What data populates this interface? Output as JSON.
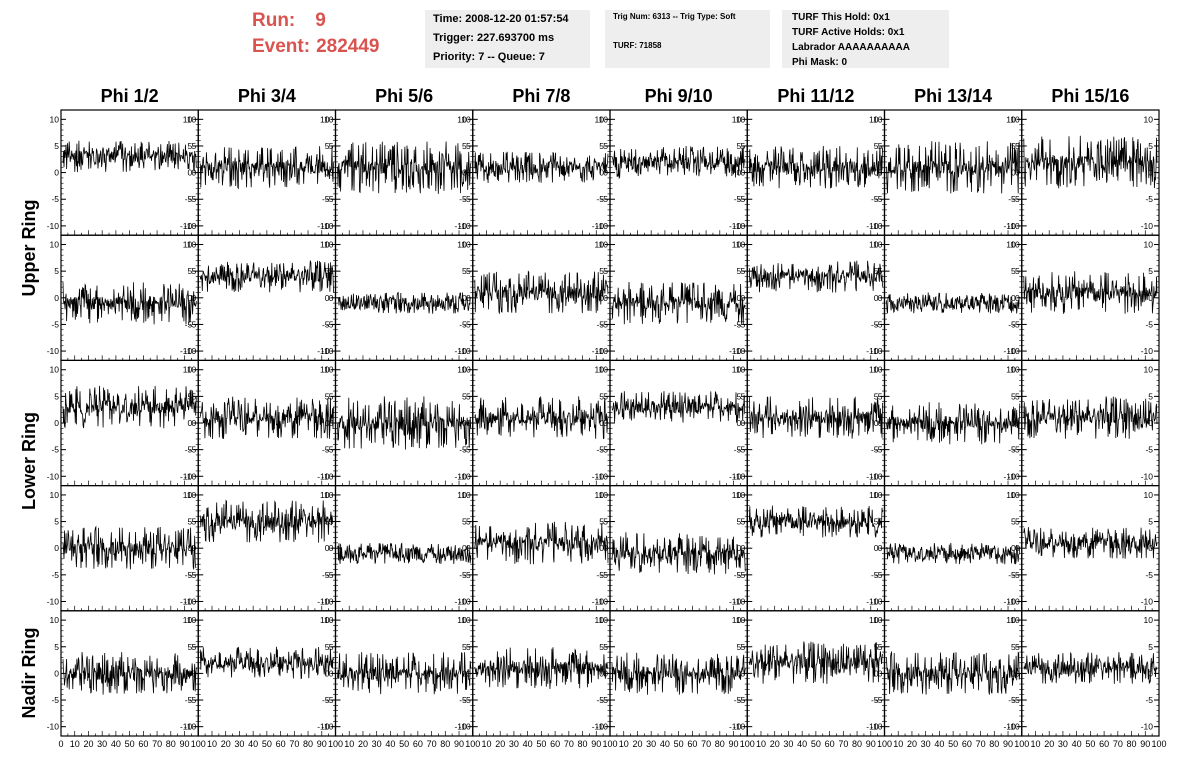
{
  "header": {
    "run_label": "Run:",
    "run_value": "9",
    "event_label": "Event:",
    "event_value": "282449",
    "info_box_1": {
      "time": "Time: 2008-12-20 01:57:54",
      "trigger": "Trigger: 227.693700 ms",
      "priority": "Priority: 7 -- Queue: 7"
    },
    "info_box_2": {
      "trig": "Trig Num: 6313 -- Trig Type: Soft",
      "turf": "TURF: 71858"
    },
    "info_box_3": {
      "this_hold": "TURF This Hold: 0x1",
      "active_holds": "TURF Active Holds: 0x1",
      "labrador": "Labrador AAAAAAAAAA",
      "phi_mask": "Phi Mask: 0"
    }
  },
  "columns": [
    "Phi 1/2",
    "Phi 3/4",
    "Phi 5/6",
    "Phi 7/8",
    "Phi 9/10",
    "Phi 11/12",
    "Phi 13/14",
    "Phi 15/16"
  ],
  "rings": [
    "Upper Ring",
    "Lower Ring",
    "Nadir Ring"
  ],
  "colors": {
    "accent": "#d9534f",
    "box_bg": "#eeeeee",
    "trace": "#000000"
  },
  "chart_data": {
    "type": "line",
    "grid": "8 columns x 5 rows of waveform panels",
    "ylim": [
      -11,
      11
    ],
    "y_ticks": [
      10,
      5,
      0,
      -5,
      -10
    ],
    "xlim": [
      0,
      100
    ],
    "x_tick_labels_first": [
      "0",
      "10",
      "20",
      "30",
      "40",
      "50",
      "60",
      "70",
      "80",
      "90",
      "100"
    ],
    "x_tick_labels": [
      "10",
      "20",
      "30",
      "40",
      "50",
      "60",
      "70",
      "80",
      "90",
      "100"
    ],
    "panel_baselines": [
      [
        3,
        1,
        1,
        1,
        2,
        1,
        1,
        2
      ],
      [
        -1,
        4,
        -1,
        1,
        -1,
        4,
        -1,
        1
      ],
      [
        3,
        1,
        0,
        1,
        3,
        1,
        0,
        1
      ],
      [
        0,
        5,
        -1,
        1,
        -1,
        5,
        -1,
        1
      ],
      [
        0,
        2,
        0,
        1,
        0,
        2,
        0,
        1
      ]
    ],
    "panel_spreads": [
      [
        3,
        4,
        5,
        3,
        3,
        4,
        5,
        5
      ],
      [
        4,
        3,
        2,
        4,
        4,
        3,
        2,
        4
      ],
      [
        4,
        4,
        5,
        4,
        3,
        4,
        4,
        4
      ],
      [
        4,
        4,
        2,
        4,
        4,
        3,
        2,
        3
      ],
      [
        4,
        3,
        4,
        4,
        4,
        4,
        4,
        3
      ]
    ]
  }
}
